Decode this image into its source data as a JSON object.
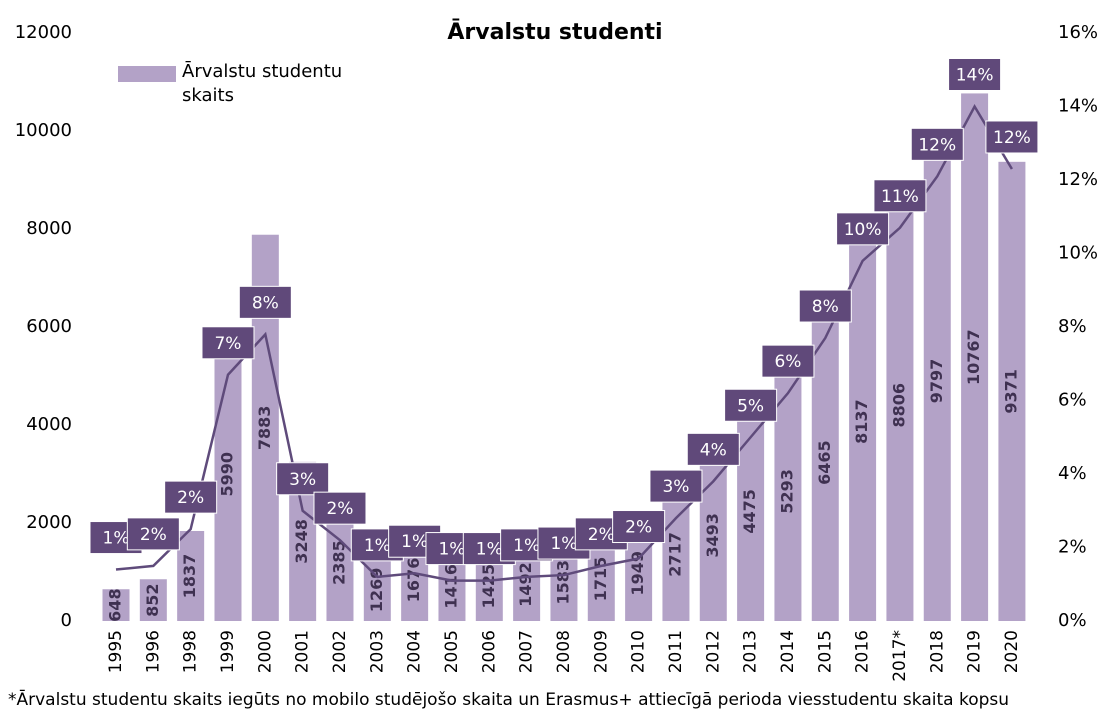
{
  "chart_data": {
    "type": "bar",
    "title": "Ārvalstu studenti",
    "categories": [
      "1995",
      "1996",
      "1998",
      "1999",
      "2000",
      "2001",
      "2002",
      "2003",
      "2004",
      "2005",
      "2006",
      "2007",
      "2008",
      "2009",
      "2010",
      "2011",
      "2012",
      "2013",
      "2014",
      "2015",
      "2016",
      "2017*",
      "2018",
      "2019",
      "2020"
    ],
    "series": [
      {
        "name": "Ārvalstu studentu skaits",
        "type": "bar",
        "color": "#b3a2c7",
        "values": [
          648,
          852,
          1837,
          5990,
          7883,
          3248,
          2385,
          1269,
          1676,
          1416,
          1425,
          1492,
          1583,
          1715,
          1949,
          2717,
          3493,
          4475,
          5293,
          6465,
          8137,
          8806,
          9797,
          10767,
          9371
        ]
      },
      {
        "type": "line",
        "axis": "y2",
        "color": "#5f4b7b",
        "values": [
          1.4,
          1.5,
          2.5,
          6.7,
          7.8,
          3.0,
          2.2,
          1.2,
          1.3,
          1.1,
          1.1,
          1.2,
          1.25,
          1.5,
          1.7,
          2.8,
          3.8,
          5.0,
          6.2,
          7.7,
          9.8,
          10.7,
          12.1,
          14.0,
          12.3
        ],
        "value_labels": [
          "1%",
          "2%",
          "2%",
          "7%",
          "8%",
          "3%",
          "2%",
          "1%",
          "1%",
          "1%",
          "1%",
          "1%",
          "1%",
          "2%",
          "2%",
          "3%",
          "4%",
          "5%",
          "6%",
          "8%",
          "10%",
          "11%",
          "12%",
          "14%",
          "12%"
        ]
      }
    ],
    "ylim": [
      0,
      12000
    ],
    "yticks": [
      0,
      2000,
      4000,
      6000,
      8000,
      10000,
      12000
    ],
    "y2lim": [
      0,
      16
    ],
    "y2ticks": [
      {
        "value": 0,
        "label": "0%"
      },
      {
        "value": 2,
        "label": "2%"
      },
      {
        "value": 4,
        "label": "4%"
      },
      {
        "value": 6,
        "label": "6%"
      },
      {
        "value": 8,
        "label": "8%"
      },
      {
        "value": 10,
        "label": "10%"
      },
      {
        "value": 12,
        "label": "12%"
      },
      {
        "value": 14,
        "label": "14%"
      },
      {
        "value": 16,
        "label": "16%"
      }
    ],
    "legend": "upper left",
    "footnote": "*Ārvalstu studentu skaits iegūts no mobilo studējošo skaita un Erasmus+ attiecīgā perioda viesstudentu skaita kopsu"
  }
}
